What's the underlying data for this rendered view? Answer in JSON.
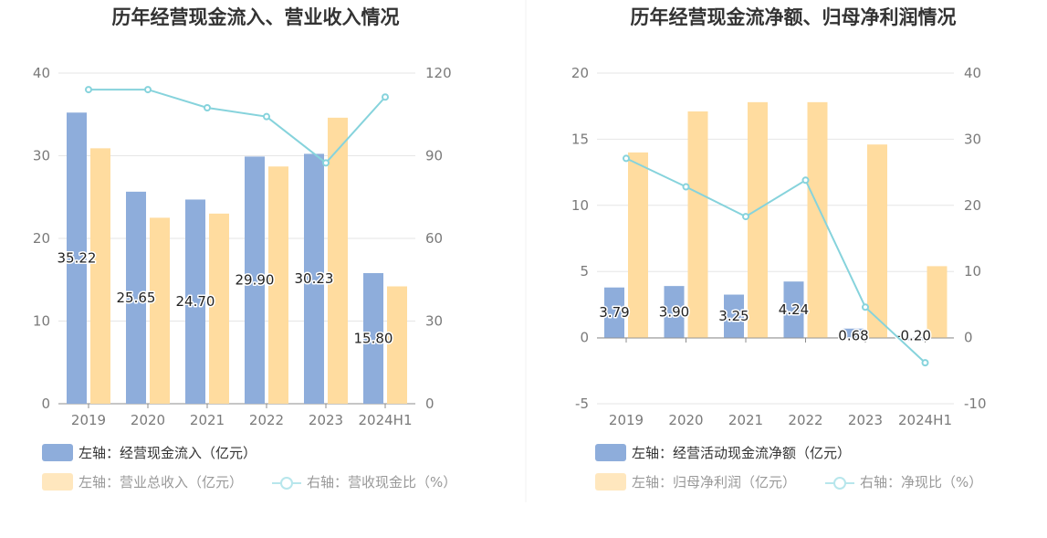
{
  "colors": {
    "bar_blue": "#8eaddb",
    "bar_orange": "#ffdc9f",
    "line": "#86d3dc",
    "grid": "#e6e6e6",
    "axis": "#8c8c8c",
    "tick_text": "#7a7a7a",
    "legend_text_dark": "#333333",
    "legend_text_light": "#999999"
  },
  "chart_data": [
    {
      "type": "bar",
      "title": "历年经营现金流入、营业收入情况",
      "categories": [
        "2019",
        "2020",
        "2021",
        "2022",
        "2023",
        "2024H1"
      ],
      "left_axis": {
        "range": [
          0,
          40
        ],
        "ticks": [
          "0",
          "10",
          "20",
          "30",
          "40"
        ]
      },
      "right_axis": {
        "range": [
          0,
          120
        ],
        "ticks": [
          "0",
          "30",
          "60",
          "90",
          "120"
        ]
      },
      "series": [
        {
          "name": "左轴：经营现金流入（亿元）",
          "type": "bar",
          "axis": "left",
          "values": [
            35.22,
            25.65,
            24.7,
            29.9,
            30.23,
            15.8
          ],
          "labels": [
            "35.22",
            "25.65",
            "24.70",
            "29.90",
            "30.23",
            "15.80"
          ]
        },
        {
          "name": "左轴：营业总收入（亿元）",
          "type": "bar",
          "axis": "left",
          "values": [
            30.9,
            22.5,
            23.0,
            28.7,
            34.6,
            14.2
          ]
        },
        {
          "name": "右轴：营收现金比（%）",
          "type": "line",
          "axis": "right",
          "values": [
            114.0,
            114.0,
            107.4,
            104.2,
            87.4,
            111.3
          ]
        }
      ],
      "legend": [
        "左轴：经营现金流入（亿元）",
        "左轴：营业总收入（亿元）",
        "右轴：营收现金比（%）"
      ],
      "grid": true,
      "legend_position": "bottom"
    },
    {
      "type": "bar",
      "title": "历年经营现金流净额、归母净利润情况",
      "categories": [
        "2019",
        "2020",
        "2021",
        "2022",
        "2023",
        "2024H1"
      ],
      "left_axis": {
        "range": [
          -5,
          20
        ],
        "ticks": [
          "-5",
          "0",
          "5",
          "10",
          "15",
          "20"
        ]
      },
      "right_axis": {
        "range": [
          -10,
          40
        ],
        "ticks": [
          "-10",
          "0",
          "10",
          "20",
          "30",
          "40"
        ]
      },
      "series": [
        {
          "name": "左轴：经营活动现金流净额（亿元）",
          "type": "bar",
          "axis": "left",
          "values": [
            3.79,
            3.9,
            3.25,
            4.24,
            0.68,
            -0.2
          ],
          "labels": [
            "3.79",
            "3.90",
            "3.25",
            "4.24",
            "0.68",
            "-0.20"
          ]
        },
        {
          "name": "左轴：归母净利润（亿元）",
          "type": "bar",
          "axis": "left",
          "values": [
            14.0,
            17.1,
            17.8,
            17.8,
            14.6,
            5.4
          ]
        },
        {
          "name": "右轴：净现比（%）",
          "type": "line",
          "axis": "right",
          "values": [
            27.1,
            22.8,
            18.3,
            23.8,
            4.6,
            -3.8
          ]
        }
      ],
      "legend": [
        "左轴：经营活动现金流净额（亿元）",
        "左轴：归母净利润（亿元）",
        "右轴：净现比（%）"
      ],
      "grid": true,
      "legend_position": "bottom"
    }
  ]
}
